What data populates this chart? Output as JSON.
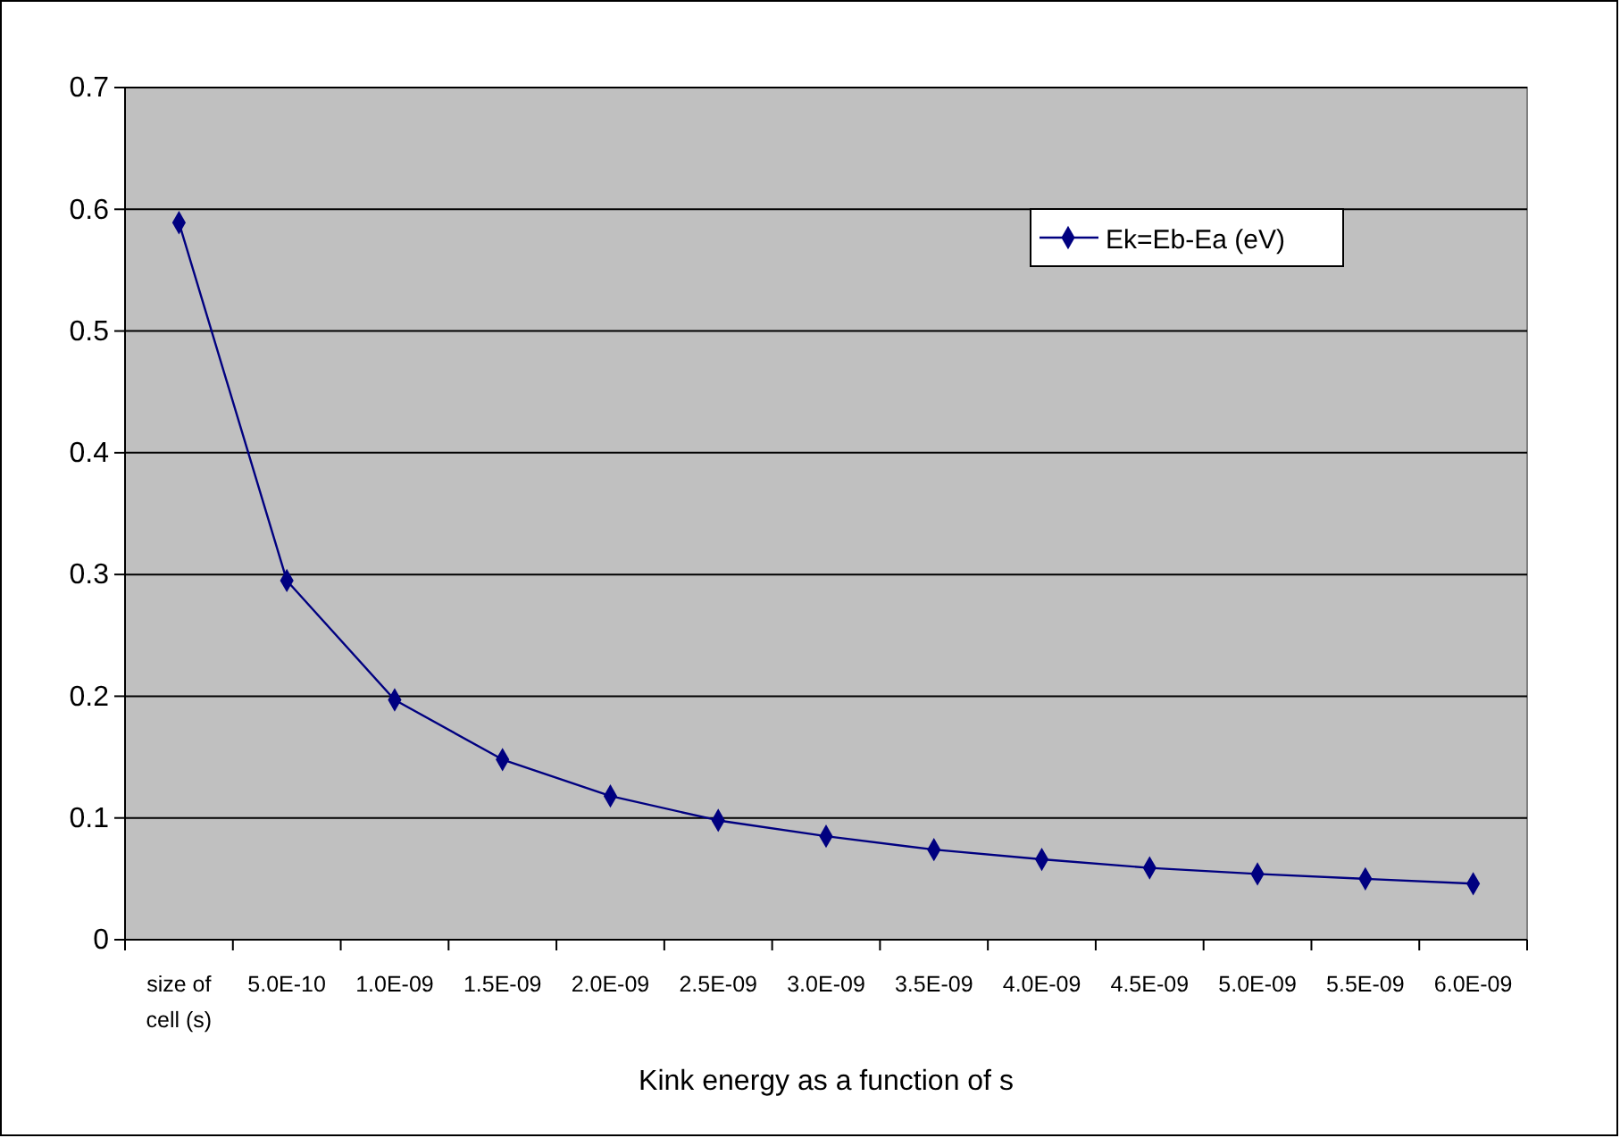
{
  "chart_data": {
    "type": "line",
    "xlabel": "Kink energy as a function of s",
    "categories": [
      "size of cell (s)",
      "5.0E-10",
      "1.0E-09",
      "1.5E-09",
      "2.0E-09",
      "2.5E-09",
      "3.0E-09",
      "3.5E-09",
      "4.0E-09",
      "4.5E-09",
      "5.0E-09",
      "5.5E-09",
      "6.0E-09"
    ],
    "series": [
      {
        "name": "Ek=Eb-Ea (eV)",
        "color": "#000080",
        "values": [
          0.589,
          0.295,
          0.197,
          0.148,
          0.118,
          0.098,
          0.085,
          0.074,
          0.066,
          0.059,
          0.054,
          0.05,
          0.046
        ]
      }
    ],
    "ylim": [
      0,
      0.7
    ],
    "yticks": [
      {
        "value": 0,
        "label": "0"
      },
      0.1,
      0.2,
      0.3,
      0.4,
      0.5,
      0.6,
      0.7
    ],
    "grid": "y",
    "legend": "top right",
    "marker": "diamond",
    "line_style": "solid"
  }
}
